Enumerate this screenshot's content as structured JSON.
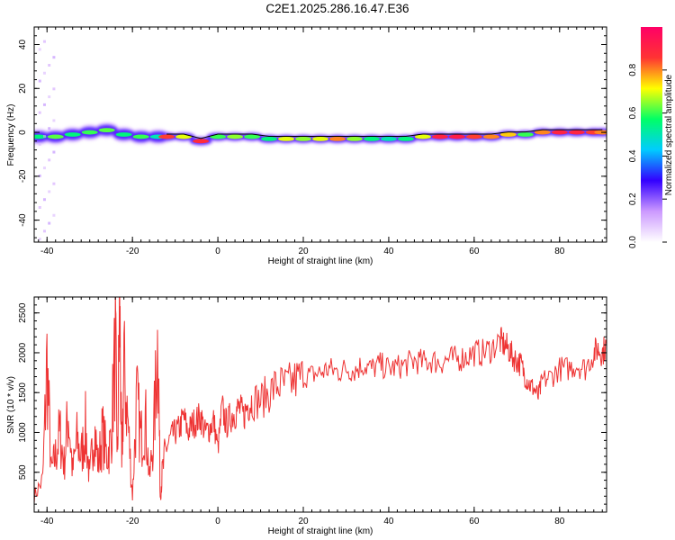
{
  "title": "C2E1.2025.286.16.47.E36",
  "colors": {
    "snr_line": "#ee3333",
    "axis": "#000000",
    "background": "#ffffff"
  },
  "chart_data": [
    {
      "type": "heatmap",
      "name": "spectrogram",
      "xlabel": "Height of straight line (km)",
      "ylabel": "Frequency (Hz)",
      "xlim": [
        -43,
        91
      ],
      "ylim": [
        -50,
        48
      ],
      "xticks": [
        -40,
        -20,
        0,
        20,
        40,
        60,
        80
      ],
      "yticks": [
        -40,
        -20,
        0,
        20,
        40
      ],
      "colorbar": {
        "label": "Normalized spectral amplitude",
        "range": [
          0,
          1
        ],
        "ticks": [
          0.0,
          0.2,
          0.4,
          0.6,
          0.8
        ],
        "tick_labels": [
          "0.0",
          "0.2",
          "0.4",
          "0.6",
          "0.8"
        ],
        "colormap": [
          "#ffffff",
          "#cc99ff",
          "#3300ff",
          "#00ccff",
          "#00ff66",
          "#ffff00",
          "#ff3333",
          "#ff0066"
        ]
      },
      "ridge": [
        {
          "x": -42,
          "f": -2,
          "a": 0.55
        },
        {
          "x": -38,
          "f": -2,
          "a": 0.62
        },
        {
          "x": -34,
          "f": -1,
          "a": 0.55
        },
        {
          "x": -30,
          "f": 0,
          "a": 0.6
        },
        {
          "x": -26,
          "f": 1,
          "a": 0.62
        },
        {
          "x": -22,
          "f": -1,
          "a": 0.55
        },
        {
          "x": -18,
          "f": -2,
          "a": 0.6
        },
        {
          "x": -14,
          "f": -2,
          "a": 0.5
        },
        {
          "x": -12,
          "f": -2,
          "a": 0.85
        },
        {
          "x": -8,
          "f": -2,
          "a": 0.7
        },
        {
          "x": -4,
          "f": -4,
          "a": 0.88
        },
        {
          "x": 0,
          "f": -2,
          "a": 0.6
        },
        {
          "x": 4,
          "f": -2,
          "a": 0.65
        },
        {
          "x": 8,
          "f": -2,
          "a": 0.6
        },
        {
          "x": 12,
          "f": -3,
          "a": 0.55
        },
        {
          "x": 16,
          "f": -3,
          "a": 0.7
        },
        {
          "x": 20,
          "f": -3,
          "a": 0.65
        },
        {
          "x": 24,
          "f": -3,
          "a": 0.7
        },
        {
          "x": 28,
          "f": -3,
          "a": 0.8
        },
        {
          "x": 32,
          "f": -3,
          "a": 0.65
        },
        {
          "x": 36,
          "f": -3,
          "a": 0.55
        },
        {
          "x": 40,
          "f": -3,
          "a": 0.5
        },
        {
          "x": 44,
          "f": -3,
          "a": 0.55
        },
        {
          "x": 48,
          "f": -2,
          "a": 0.7
        },
        {
          "x": 52,
          "f": -2,
          "a": 0.9
        },
        {
          "x": 56,
          "f": -2,
          "a": 0.92
        },
        {
          "x": 60,
          "f": -2,
          "a": 0.85
        },
        {
          "x": 64,
          "f": -2,
          "a": 0.8
        },
        {
          "x": 68,
          "f": -1,
          "a": 0.75
        },
        {
          "x": 72,
          "f": -1,
          "a": 0.6
        },
        {
          "x": 76,
          "f": 0,
          "a": 0.8
        },
        {
          "x": 80,
          "f": 0,
          "a": 0.9
        },
        {
          "x": 84,
          "f": 0,
          "a": 0.9
        },
        {
          "x": 88,
          "f": 0,
          "a": 0.85
        },
        {
          "x": 90,
          "f": 0,
          "a": 0.8
        }
      ]
    },
    {
      "type": "line",
      "name": "snr",
      "xlabel": "Height of straight line (km)",
      "ylabel": "SNR (10 * v/v)",
      "xlim": [
        -43,
        91
      ],
      "ylim": [
        0,
        2700
      ],
      "xticks": [
        -40,
        -20,
        0,
        20,
        40,
        60,
        80
      ],
      "yticks": [
        500,
        1000,
        1500,
        2000,
        2500
      ],
      "series": [
        {
          "name": "SNR",
          "x": [
            -43,
            -41,
            -40,
            -39,
            -38,
            -37,
            -36,
            -35,
            -34,
            -33,
            -32,
            -31,
            -30,
            -29,
            -28,
            -27,
            -26,
            -25,
            -24,
            -23.5,
            -23,
            -22.5,
            -22,
            -21,
            -20,
            -19,
            -18,
            -17,
            -16,
            -15,
            -14,
            -13.5,
            -13,
            -12,
            -11,
            -10,
            -9,
            -8,
            -7,
            -6,
            -5,
            -4,
            -3,
            -2,
            -1,
            0,
            1,
            2,
            3,
            4,
            5,
            6,
            7,
            8,
            10,
            12,
            14,
            16,
            18,
            20,
            22,
            24,
            26,
            28,
            30,
            32,
            34,
            36,
            38,
            40,
            42,
            44,
            46,
            48,
            50,
            52,
            54,
            56,
            58,
            60,
            62,
            64,
            66,
            67,
            68,
            69,
            70,
            71,
            72,
            73,
            74,
            75,
            76,
            78,
            80,
            82,
            84,
            86,
            88,
            89,
            90,
            91
          ],
          "values": [
            200,
            400,
            1900,
            500,
            700,
            1000,
            600,
            1250,
            500,
            900,
            700,
            1050,
            400,
            1100,
            600,
            1000,
            700,
            900,
            2100,
            600,
            2700,
            500,
            1800,
            1100,
            200,
            1400,
            900,
            1200,
            400,
            1000,
            2250,
            200,
            500,
            800,
            950,
            1000,
            1050,
            1200,
            1000,
            1100,
            1150,
            1200,
            1000,
            1050,
            1150,
            800,
            1300,
            1100,
            1200,
            1250,
            1300,
            1200,
            1350,
            1400,
            1400,
            1500,
            1600,
            1580,
            1650,
            1700,
            1720,
            1750,
            1800,
            1760,
            1800,
            1780,
            1850,
            1800,
            1850,
            1800,
            1820,
            1850,
            1900,
            1880,
            1900,
            1880,
            1920,
            1920,
            1950,
            2000,
            2000,
            2050,
            2150,
            2100,
            2050,
            1950,
            1900,
            1850,
            1700,
            1600,
            1550,
            1450,
            1650,
            1700,
            1800,
            1800,
            1850,
            1800,
            2000,
            2050,
            2000,
            2100
          ]
        }
      ]
    }
  ]
}
